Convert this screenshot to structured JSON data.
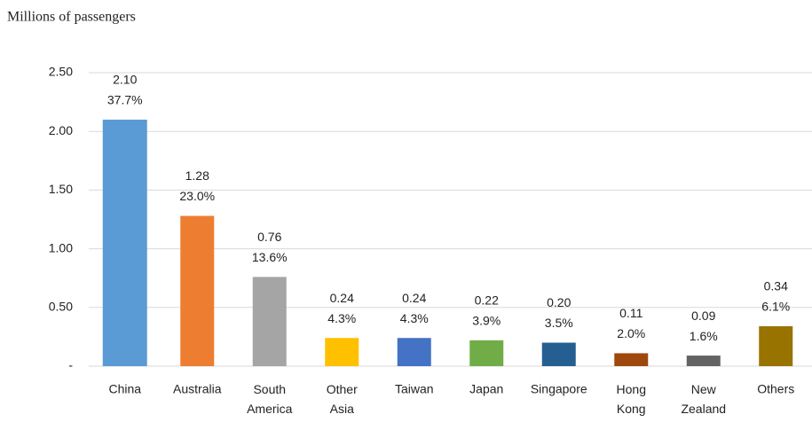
{
  "chart_data": {
    "type": "bar",
    "y_label": "Millions of passengers",
    "categories": [
      "China",
      "Australia",
      "South America",
      "Other Asia",
      "Taiwan",
      "Japan",
      "Singapore",
      "Hong Kong",
      "New Zealand",
      "Others"
    ],
    "values": [
      2.1,
      1.28,
      0.76,
      0.24,
      0.24,
      0.22,
      0.2,
      0.11,
      0.09,
      0.34
    ],
    "value_labels": [
      "2.10",
      "1.28",
      "0.76",
      "0.24",
      "0.24",
      "0.22",
      "0.20",
      "0.11",
      "0.09",
      "0.34"
    ],
    "shares": [
      37.7,
      23.0,
      13.6,
      4.3,
      4.3,
      3.9,
      3.5,
      2.0,
      1.6,
      6.1
    ],
    "share_labels": [
      "37.7%",
      "23.0%",
      "13.6%",
      "4.3%",
      "4.3%",
      "3.9%",
      "3.5%",
      "2.0%",
      "1.6%",
      "6.1%"
    ],
    "colors": [
      "#5b9bd5",
      "#ed7d31",
      "#a5a5a5",
      "#ffc000",
      "#4472c4",
      "#70ad47",
      "#255e91",
      "#9e480e",
      "#636363",
      "#997300"
    ],
    "ylim": [
      0,
      2.5
    ],
    "yticks": [
      {
        "value": 0,
        "label": "-"
      },
      {
        "value": 0.5,
        "label": "0.50"
      },
      {
        "value": 1,
        "label": "1.00"
      },
      {
        "value": 1.5,
        "label": "1.50"
      },
      {
        "value": 2,
        "label": "2.00"
      },
      {
        "value": 2.5,
        "label": "2.50"
      }
    ],
    "grid": true
  }
}
